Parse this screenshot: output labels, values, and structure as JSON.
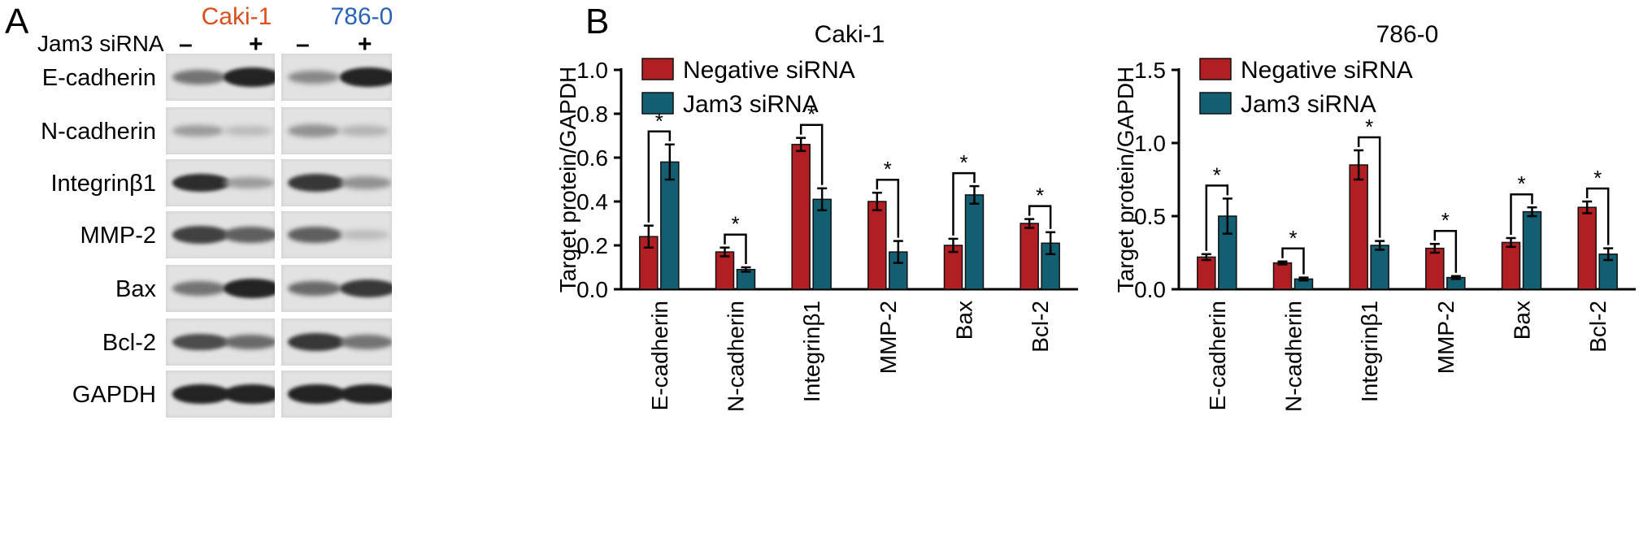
{
  "colors": {
    "negative_bar": "#b21f22",
    "jam3_bar": "#135e70",
    "caki_title": "#d9501e",
    "cell786_title": "#2b63b8"
  },
  "panel_a": {
    "letter": "A",
    "siRNA_label": "Jam3 siRNA",
    "cell_lines": [
      "Caki-1",
      "786-0"
    ],
    "minus_sign": "–",
    "plus_sign": "+",
    "rows": [
      "E-cadherin",
      "N-cadherin",
      "Integrinβ1",
      "MMP-2",
      "Bax",
      "Bcl-2",
      "GAPDH"
    ]
  },
  "panel_b": {
    "letter": "B"
  },
  "chart_data": [
    {
      "type": "bar",
      "title": "Caki-1",
      "ylabel": "Target protein/GAPDH",
      "xlabel": "",
      "ylim": [
        0,
        1.0
      ],
      "yticks": [
        "0.0",
        "0.2",
        "0.4",
        "0.6",
        "0.8",
        "1.0"
      ],
      "categories": [
        "E-cadherin",
        "N-cadherin",
        "Integrinβ1",
        "MMP-2",
        "Bax",
        "Bcl-2"
      ],
      "legend_position": "top-left",
      "series": [
        {
          "name": "Negative siRNA",
          "values": [
            0.24,
            0.17,
            0.66,
            0.4,
            0.2,
            0.3
          ],
          "errors": [
            0.05,
            0.02,
            0.03,
            0.04,
            0.03,
            0.02
          ]
        },
        {
          "name": "Jam3 siRNA",
          "values": [
            0.58,
            0.09,
            0.41,
            0.17,
            0.43,
            0.21
          ],
          "errors": [
            0.08,
            0.01,
            0.05,
            0.05,
            0.04,
            0.05
          ]
        }
      ],
      "significance": [
        "*",
        "*",
        "*",
        "*",
        "*",
        "*"
      ]
    },
    {
      "type": "bar",
      "title": "786-0",
      "ylabel": "Target protein/GAPDH",
      "xlabel": "",
      "ylim": [
        0,
        1.5
      ],
      "yticks": [
        "0.0",
        "0.5",
        "1.0",
        "1.5"
      ],
      "categories": [
        "E-cadherin",
        "N-cadherin",
        "Integrinβ1",
        "MMP-2",
        "Bax",
        "Bcl-2"
      ],
      "legend_position": "top-left",
      "series": [
        {
          "name": "Negative siRNA",
          "values": [
            0.22,
            0.18,
            0.85,
            0.28,
            0.32,
            0.56
          ],
          "errors": [
            0.02,
            0.01,
            0.1,
            0.03,
            0.03,
            0.04
          ]
        },
        {
          "name": "Jam3 siRNA",
          "values": [
            0.5,
            0.07,
            0.3,
            0.08,
            0.53,
            0.24
          ],
          "errors": [
            0.12,
            0.01,
            0.03,
            0.01,
            0.03,
            0.04
          ]
        }
      ],
      "significance": [
        "*",
        "*",
        "*",
        "*",
        "*",
        "*"
      ]
    }
  ]
}
